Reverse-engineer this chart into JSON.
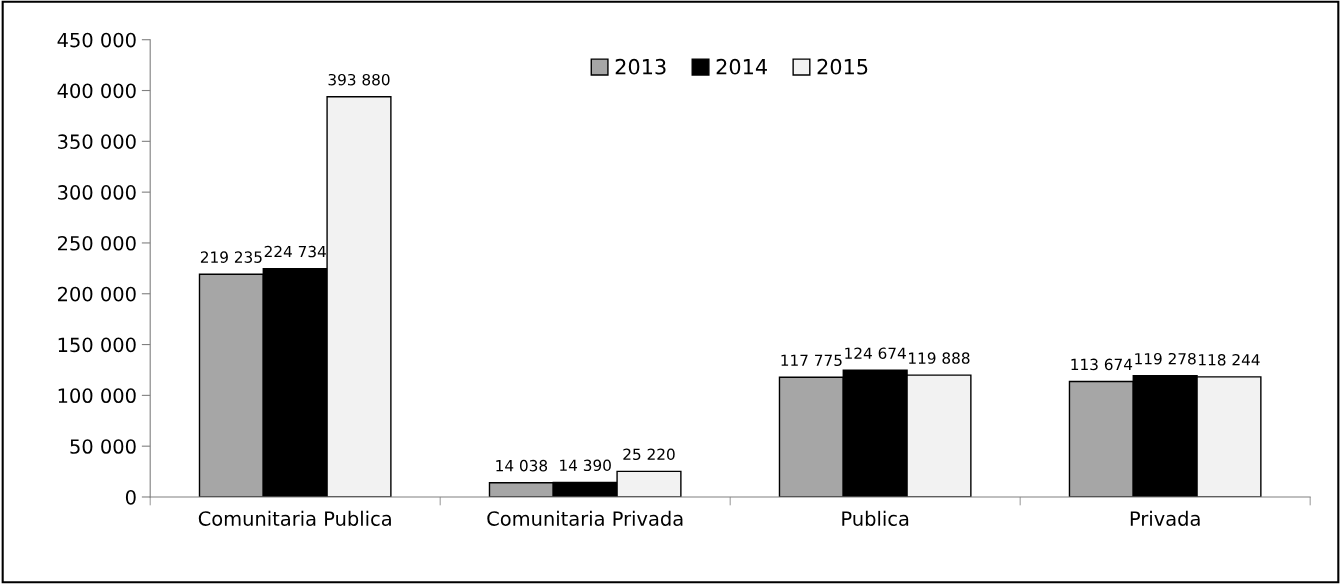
{
  "chart_data": {
    "type": "bar",
    "categories": [
      "Comunitaria Publica",
      "Comunitaria Privada",
      "Publica",
      "Privada"
    ],
    "series": [
      {
        "name": "2013",
        "color": "#a6a6a6",
        "values": [
          219235,
          14038,
          117775,
          113674
        ],
        "value_labels": [
          "219 235",
          "14 038",
          "117 775",
          "113 674"
        ]
      },
      {
        "name": "2014",
        "color": "#000000",
        "values": [
          224734,
          14390,
          124674,
          119278
        ],
        "value_labels": [
          "224 734",
          "14 390",
          "124 674",
          "119 278"
        ]
      },
      {
        "name": "2015",
        "color": "#f2f2f2",
        "values": [
          393880,
          25220,
          119888,
          118244
        ],
        "value_labels": [
          "393 880",
          "25 220",
          "119 888",
          "118 244"
        ]
      }
    ],
    "ylim": [
      0,
      450000
    ],
    "yticks": [
      0,
      {
        "value": 50000,
        "label": "50 000"
      },
      {
        "value": 100000,
        "label": "100 000"
      },
      {
        "value": 150000,
        "label": "150 000"
      },
      {
        "value": 200000,
        "label": "200 000"
      },
      {
        "value": 250000,
        "label": "250 000"
      },
      {
        "value": 300000,
        "label": "300 000"
      },
      {
        "value": 350000,
        "label": "350 000"
      },
      {
        "value": 400000,
        "label": "400 000"
      },
      {
        "value": 450000,
        "label": "450 000"
      }
    ],
    "grid": false,
    "legend": "top"
  }
}
